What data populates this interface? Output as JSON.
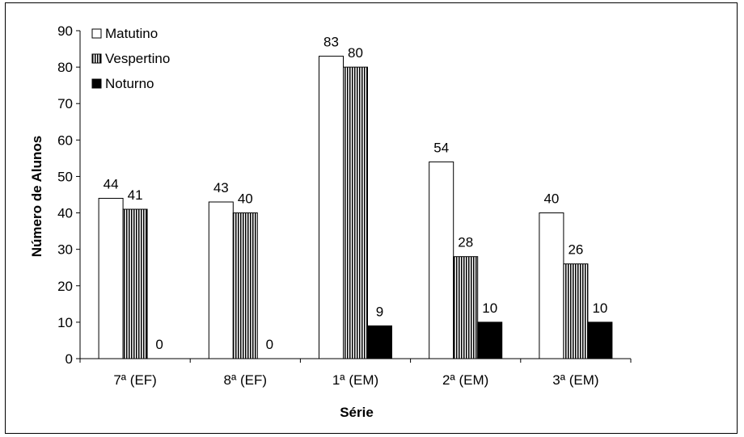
{
  "chart_data": {
    "type": "bar",
    "categories": [
      "7ª (EF)",
      "8ª (EF)",
      "1ª (EM)",
      "2ª (EM)",
      "3ª (EM)"
    ],
    "series": [
      {
        "name": "Matutino",
        "values": [
          44,
          43,
          83,
          54,
          40
        ],
        "fill": "white"
      },
      {
        "name": "Vespertino",
        "values": [
          41,
          40,
          80,
          28,
          26
        ],
        "fill": "vertical-stripes"
      },
      {
        "name": "Noturno",
        "values": [
          0,
          0,
          9,
          10,
          10
        ],
        "fill": "black"
      }
    ],
    "title": "",
    "xlabel": "Série",
    "ylabel": "Número de Alunos",
    "ylim": [
      0,
      90
    ],
    "yticks": [
      0,
      10,
      20,
      30,
      40,
      50,
      60,
      70,
      80,
      90
    ],
    "grid": false,
    "legend_position": "top-left",
    "data_labels": true
  }
}
